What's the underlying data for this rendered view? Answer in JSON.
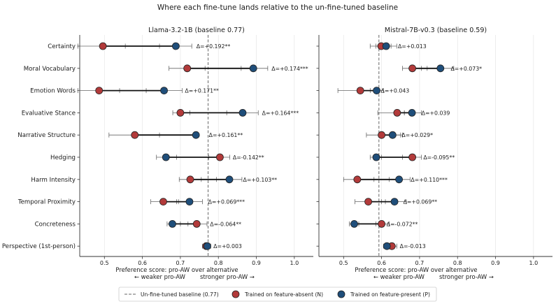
{
  "title": "Where each fine-tune lands relative to the un-fine-tuned baseline",
  "colors": {
    "absent": "#b23a3a",
    "present": "#1f4e7a",
    "baseline": "#666666"
  },
  "legend": {
    "baseline": "Un-fine-tuned baseline (0.77)",
    "absent": "Trained on feature-absent (N)",
    "present": "Trained on feature-present (P)"
  },
  "chart_data": [
    {
      "type": "dumbbell",
      "title": "Llama-3.2-1B (baseline 0.77)",
      "xlabel": "Preference score: pro-AW over alternative",
      "xlabel_left": "← weaker pro-AW",
      "xlabel_right": "stronger pro-AW →",
      "xlim": [
        0.435,
        1.05
      ],
      "xticks": [
        "0.5",
        "0.6",
        "0.7",
        "0.8",
        "0.9",
        "1.0"
      ],
      "baseline": 0.773,
      "grid": "vertical",
      "categories": [
        "Certainty",
        "Moral Vocabulary",
        "Emotion Words",
        "Evaluative Stance",
        "Narrative Structure",
        "Hedging",
        "Harm Intensity",
        "Temporal Proximity",
        "Concreteness",
        "Perspective (1st-person)"
      ],
      "series": [
        {
          "name": "Trained on feature-absent (N)",
          "values": [
            0.496,
            0.718,
            0.486,
            0.7,
            0.58,
            0.804,
            0.726,
            0.655,
            0.743,
            0.768
          ],
          "err_lo": [
            0.43,
            0.67,
            0.43,
            0.68,
            0.512,
            0.775,
            0.697,
            0.622,
            0.72,
            0.758
          ],
          "err_hi": [
            0.555,
            0.765,
            0.54,
            0.725,
            0.645,
            0.83,
            0.755,
            0.69,
            0.77,
            0.778
          ]
        },
        {
          "name": "Trained on feature-present (P)",
          "values": [
            0.688,
            0.892,
            0.657,
            0.864,
            0.741,
            0.662,
            0.829,
            0.724,
            0.679,
            0.771
          ],
          "err_lo": [
            0.645,
            0.86,
            0.61,
            0.822,
            0.735,
            0.637,
            0.795,
            0.695,
            0.665,
            0.762
          ],
          "err_hi": [
            0.73,
            0.93,
            0.705,
            0.905,
            0.748,
            0.69,
            0.862,
            0.758,
            0.7,
            0.78
          ]
        }
      ],
      "annotations": [
        "Δ=+0.192**",
        "Δ=+0.174***",
        "Δ=+0.171**",
        "Δ=+0.164***",
        "Δ=+0.161**",
        "Δ=-0.142**",
        "Δ=+0.103**",
        "Δ=+0.069***",
        "Δ=-0.064**",
        "Δ=+0.003"
      ],
      "annotation_x": [
        0.742,
        0.94,
        0.712,
        0.915,
        0.775,
        0.838,
        0.865,
        0.773,
        0.778,
        0.787
      ]
    },
    {
      "type": "dumbbell",
      "title": "Mistral-7B-v0.3 (baseline 0.59)",
      "xlabel": "Preference score: pro-AW over alternative",
      "xlabel_left": "← weaker pro-AW",
      "xlabel_right": "stronger pro-AW →",
      "xlim": [
        0.435,
        1.05
      ],
      "xticks": [
        "0.5",
        "0.6",
        "0.7",
        "0.8",
        "0.9",
        "1.0"
      ],
      "baseline": 0.593,
      "grid": "vertical",
      "categories": [
        "Certainty",
        "Moral Vocabulary",
        "Emotion Words",
        "Evaluative Stance",
        "Narrative Structure",
        "Hedging",
        "Harm Intensity",
        "Temporal Proximity",
        "Concreteness",
        "Perspective (1st-person)"
      ],
      "series": [
        {
          "name": "Trained on feature-absent (N)",
          "values": [
            0.599,
            0.681,
            0.544,
            0.641,
            0.6,
            0.681,
            0.536,
            0.565,
            0.6,
            0.627
          ],
          "err_lo": [
            0.57,
            0.655,
            0.485,
            0.59,
            0.56,
            0.655,
            0.5,
            0.53,
            0.585,
            0.61
          ],
          "err_hi": [
            0.625,
            0.705,
            0.59,
            0.66,
            0.65,
            0.705,
            0.58,
            0.61,
            0.62,
            0.64
          ]
        },
        {
          "name": "Trained on feature-present (P)",
          "values": [
            0.612,
            0.755,
            0.587,
            0.68,
            0.629,
            0.586,
            0.646,
            0.634,
            0.528,
            0.614
          ],
          "err_lo": [
            0.585,
            0.72,
            0.57,
            0.66,
            0.6,
            0.57,
            0.62,
            0.6,
            0.515,
            0.605
          ],
          "err_hi": [
            0.64,
            0.79,
            0.605,
            0.705,
            0.655,
            0.6,
            0.675,
            0.665,
            0.54,
            0.625
          ]
        }
      ],
      "annotations": [
        "Δ=+0.013",
        "Δ=+0.073*",
        "Δ=+0.043",
        "Δ=+0.039",
        "Δ=+0.029*",
        "Δ=-0.095**",
        "Δ=+0.110***",
        "Δ=+0.069**",
        "Δ=-0.072**",
        "Δ=-0.013"
      ],
      "annotation_x": [
        0.643,
        0.782,
        0.598,
        0.705,
        0.653,
        0.71,
        0.677,
        0.657,
        0.613,
        0.648
      ]
    }
  ]
}
